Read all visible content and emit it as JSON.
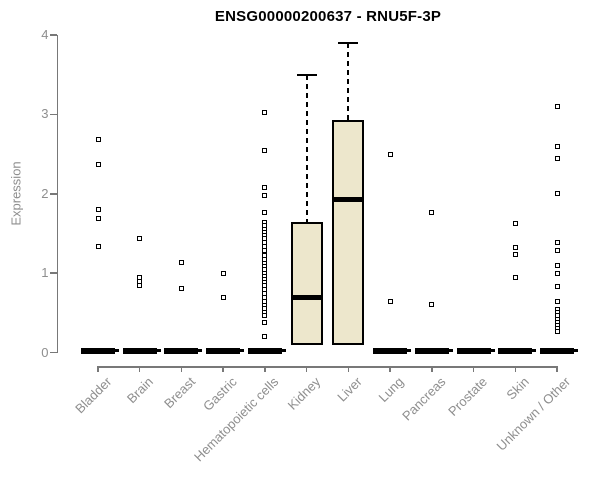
{
  "title": "ENSG00000200637 - RNU5F-3P",
  "colors": {
    "box_fill": "#EDE7CC",
    "box_border": "#000000",
    "axis": "#787878",
    "tick_text": "#8E8E8E",
    "title_text": "#000000"
  },
  "chart_data": {
    "type": "boxplot",
    "title": "ENSG00000200637 - RNU5F-3P",
    "xlabel": "",
    "ylabel": "Expression",
    "ylim": [
      0,
      4
    ],
    "y_ticks": [
      0,
      1,
      2,
      3,
      4
    ],
    "grid": false,
    "legend": "none",
    "categories": [
      "Bladder",
      "Brain",
      "Breast",
      "Gastric",
      "Hematopoietic cells",
      "Kidney",
      "Liver",
      "Lung",
      "Pancreas",
      "Prostate",
      "Skin",
      "Unknown / Other"
    ],
    "series": [
      {
        "category": "Bladder",
        "box": {
          "q1": 0,
          "median": 0,
          "q3": 0,
          "whisker_low": 0,
          "whisker_high": 0
        },
        "outliers": [
          2.68,
          2.37,
          1.8,
          1.69,
          1.34
        ]
      },
      {
        "category": "Brain",
        "box": {
          "q1": 0,
          "median": 0,
          "q3": 0,
          "whisker_low": 0,
          "whisker_high": 0
        },
        "outliers": [
          1.43,
          0.94,
          0.89,
          0.85
        ]
      },
      {
        "category": "Breast",
        "box": {
          "q1": 0,
          "median": 0,
          "q3": 0,
          "whisker_low": 0,
          "whisker_high": 0
        },
        "outliers": [
          1.13,
          0.81
        ]
      },
      {
        "category": "Gastric",
        "box": {
          "q1": 0,
          "median": 0,
          "q3": 0,
          "whisker_low": 0,
          "whisker_high": 0
        },
        "outliers": [
          1.0,
          0.69
        ]
      },
      {
        "category": "Hematopoietic cells",
        "box": {
          "q1": 0,
          "median": 0,
          "q3": 0,
          "whisker_low": 0,
          "whisker_high": 0
        },
        "outliers": [
          3.02,
          2.55,
          2.08,
          1.98,
          1.76,
          1.64,
          1.6,
          1.55,
          1.51,
          1.47,
          1.43,
          1.38,
          1.33,
          1.28,
          1.22,
          1.17,
          1.12,
          1.08,
          1.04,
          1.0,
          0.96,
          0.92,
          0.88,
          0.84,
          0.79,
          0.74,
          0.69,
          0.64,
          0.59,
          0.55,
          0.51,
          0.47,
          0.38,
          0.2
        ]
      },
      {
        "category": "Kidney",
        "box": {
          "q1": 0.09,
          "median": 0.69,
          "q3": 1.64,
          "whisker_low": 0.09,
          "whisker_high": 3.49
        },
        "outliers": []
      },
      {
        "category": "Liver",
        "box": {
          "q1": 0.09,
          "median": 1.93,
          "q3": 2.93,
          "whisker_low": 0.09,
          "whisker_high": 3.9
        },
        "outliers": []
      },
      {
        "category": "Lung",
        "box": {
          "q1": 0,
          "median": 0,
          "q3": 0,
          "whisker_low": 0,
          "whisker_high": 0
        },
        "outliers": [
          2.5,
          0.64
        ]
      },
      {
        "category": "Pancreas",
        "box": {
          "q1": 0,
          "median": 0,
          "q3": 0,
          "whisker_low": 0,
          "whisker_high": 0
        },
        "outliers": [
          1.76,
          0.61
        ]
      },
      {
        "category": "Prostate",
        "box": {
          "q1": 0,
          "median": 0,
          "q3": 0,
          "whisker_low": 0,
          "whisker_high": 0
        },
        "outliers": []
      },
      {
        "category": "Skin",
        "box": {
          "q1": 0,
          "median": 0,
          "q3": 0,
          "whisker_low": 0,
          "whisker_high": 0
        },
        "outliers": [
          1.63,
          1.32,
          1.24,
          0.95
        ]
      },
      {
        "category": "Unknown / Other",
        "box": {
          "q1": 0,
          "median": 0,
          "q3": 0,
          "whisker_low": 0,
          "whisker_high": 0
        },
        "outliers": [
          3.1,
          2.59,
          2.44,
          2.0,
          1.39,
          1.29,
          1.1,
          0.99,
          0.83,
          0.64,
          0.54,
          0.5,
          0.46,
          0.42,
          0.38,
          0.34,
          0.3,
          0.26
        ]
      }
    ]
  }
}
